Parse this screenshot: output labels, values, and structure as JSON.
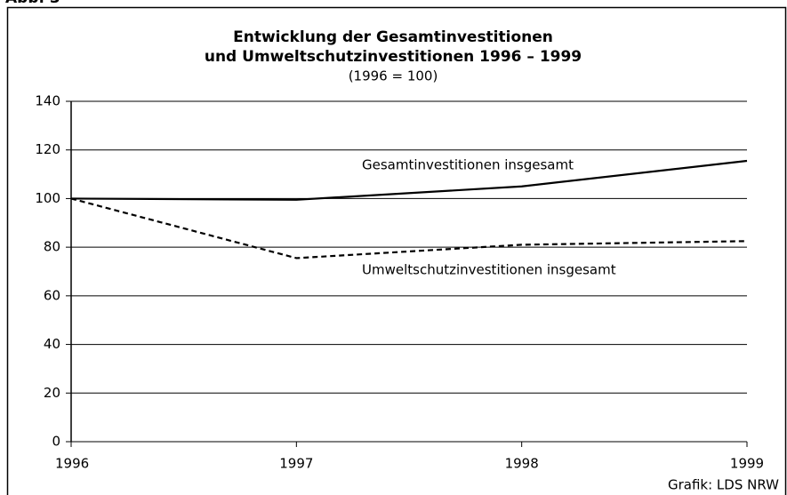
{
  "chart_data": {
    "type": "line",
    "figure_label": "Abb. 3",
    "title": [
      "Entwicklung der Gesamtinvestitionen",
      "und Umweltschutzinvestitionen 1996 – 1999"
    ],
    "subtitle": "(1996 = 100)",
    "x": [
      1996,
      1997,
      1998,
      1999
    ],
    "series": [
      {
        "name": "Gesamtinvestitionen insgesamt",
        "color": "#000000",
        "style": "solid",
        "values": [
          100,
          99.5,
          105,
          115.5
        ]
      },
      {
        "name": "Umweltschutzinvestitionen insgesamt",
        "color": "#000000",
        "style": "dashed",
        "values": [
          100,
          75.5,
          81,
          82.5
        ]
      }
    ],
    "xlim": [
      1996,
      1999
    ],
    "xticks": [
      1996,
      1997,
      1998,
      1999
    ],
    "ylim": [
      0,
      140
    ],
    "yticks": [
      0,
      20,
      40,
      60,
      80,
      100,
      120,
      140
    ],
    "grid": true,
    "source": "Grafik: LDS NRW"
  }
}
